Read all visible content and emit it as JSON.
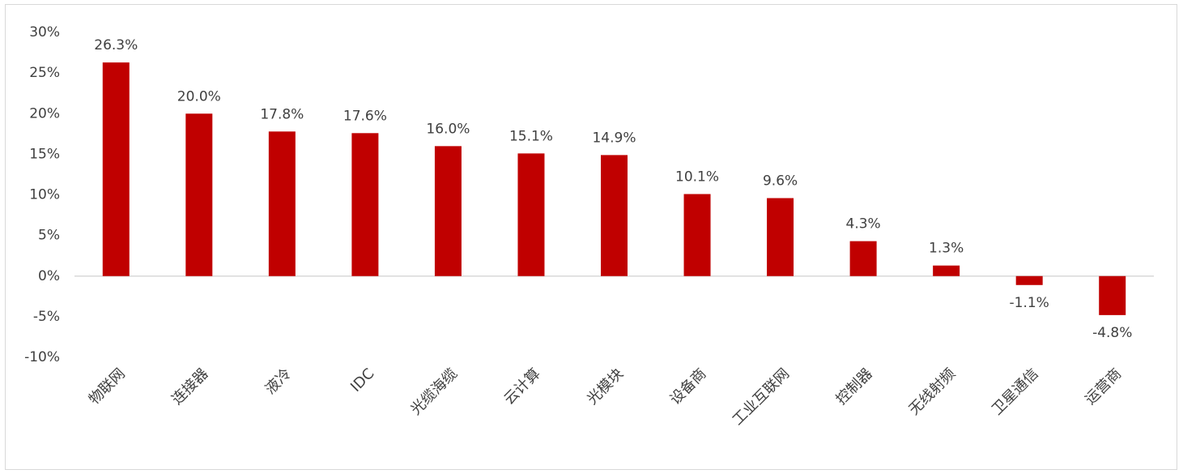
{
  "chart_data": {
    "type": "bar",
    "title": "",
    "xlabel": "",
    "ylabel": "",
    "ylim": [
      -10,
      30
    ],
    "y_ticks": [
      "30%",
      "25%",
      "20%",
      "15%",
      "10%",
      "5%",
      "0%",
      "-5%",
      "-10%"
    ],
    "y_tick_values": [
      30,
      25,
      20,
      15,
      10,
      5,
      0,
      -5,
      -10
    ],
    "grid": false,
    "legend": "none",
    "bar_color": "#C00000",
    "categories": [
      "物联网",
      "连接器",
      "液冷",
      "IDC",
      "光缆海缆",
      "云计算",
      "光模块",
      "设备商",
      "工业互联网",
      "控制器",
      "无线射频",
      "卫星通信",
      "运营商"
    ],
    "values": [
      26.3,
      20.0,
      17.8,
      17.6,
      16.0,
      15.1,
      14.9,
      10.1,
      9.6,
      4.3,
      1.3,
      -1.1,
      -4.8
    ],
    "data_labels": [
      "26.3%",
      "20.0%",
      "17.8%",
      "17.6%",
      "16.0%",
      "15.1%",
      "14.9%",
      "10.1%",
      "9.6%",
      "4.3%",
      "1.3%",
      "-1.1%",
      "-4.8%"
    ]
  }
}
